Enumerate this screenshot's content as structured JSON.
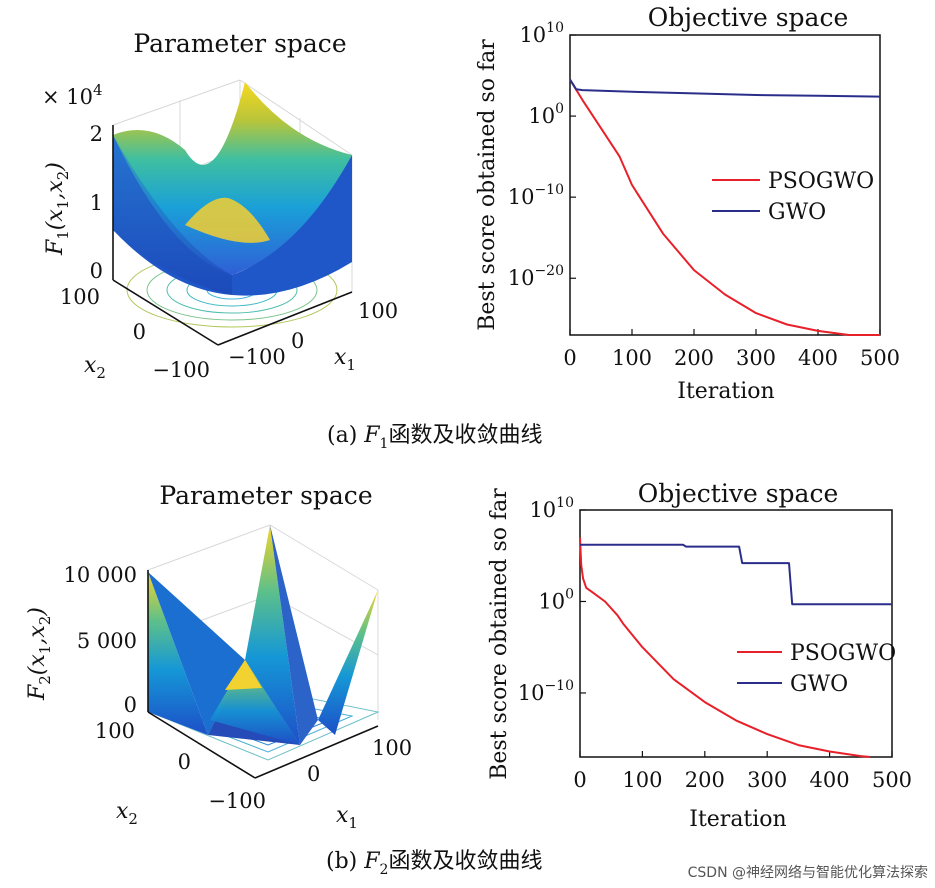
{
  "chart_data": [
    {
      "id": "f1-surface",
      "type": "surface3d",
      "title": "Parameter space",
      "function": "F1(x1,x2) = x1^2 + x2^2",
      "zlabel_func": "F",
      "zlabel_sub": "1",
      "zlabel_args": "(x",
      "zlabel_sub1": "1",
      "zlabel_comma": ",x",
      "zlabel_sub2": "2",
      "zlabel_close": ")",
      "zscale_label": "× 10",
      "zscale_exp": "4",
      "zticks": [
        "2",
        "1",
        "0"
      ],
      "x1label": "x",
      "x1label_sub": "1",
      "x2label": "x",
      "x2label_sub": "2",
      "x1ticks": [
        "−100",
        "0",
        "100"
      ],
      "x2ticks": [
        "100",
        "0",
        "−100"
      ],
      "zlim": [
        0,
        20000
      ],
      "xlim": [
        -100,
        100
      ]
    },
    {
      "id": "f1-convergence",
      "type": "line",
      "title": "Objective space",
      "xlabel": "Iteration",
      "ylabel": "Best score obtained so far",
      "yscale": "log",
      "xlim": [
        0,
        500
      ],
      "ylim_exp": [
        -27,
        10
      ],
      "xticks": [
        "0",
        "100",
        "200",
        "300",
        "400",
        "500"
      ],
      "yticks": [
        {
          "base": "10",
          "exp": "10",
          "v": 10
        },
        {
          "base": "10",
          "exp": "0",
          "v": 0
        },
        {
          "base": "10",
          "exp": "−10",
          "v": -10
        },
        {
          "base": "10",
          "exp": "−20",
          "v": -20
        }
      ],
      "series": [
        {
          "name": "PSOGWO",
          "color": "#e8202a",
          "x": [
            0,
            20,
            50,
            80,
            100,
            150,
            200,
            250,
            300,
            350,
            400,
            450,
            480,
            500
          ],
          "log10_y": [
            4.5,
            2,
            -1.5,
            -5,
            -8.5,
            -14.5,
            -19,
            -22,
            -24.3,
            -25.7,
            -26.5,
            -27,
            -27,
            -27
          ]
        },
        {
          "name": "GWO",
          "color": "#2a2e8a",
          "x": [
            0,
            10,
            20,
            100,
            200,
            300,
            400,
            500
          ],
          "log10_y": [
            4.5,
            3.3,
            3.2,
            3.0,
            2.8,
            2.6,
            2.5,
            2.4
          ]
        }
      ],
      "legend": "right-middle"
    },
    {
      "id": "f2-surface",
      "type": "surface3d",
      "title": "Parameter space",
      "function": "F2 pyramid surface",
      "zlabel_func": "F",
      "zlabel_sub": "2",
      "zlabel_args": "(x",
      "zlabel_sub1": "1",
      "zlabel_comma": ",x",
      "zlabel_sub2": "2",
      "zlabel_close": ")",
      "zticks": [
        "10 000",
        "5 000",
        "0"
      ],
      "x1label": "x",
      "x1label_sub": "1",
      "x2label": "x",
      "x2label_sub": "2",
      "x1ticks": [
        "−100",
        "0",
        "100"
      ],
      "x2ticks": [
        "100",
        "0",
        "−100"
      ],
      "zlim": [
        0,
        10000
      ],
      "xlim": [
        -100,
        100
      ]
    },
    {
      "id": "f2-convergence",
      "type": "line",
      "title": "Objective space",
      "xlabel": "Iteration",
      "ylabel": "Best score obtained so far",
      "yscale": "log",
      "xlim": [
        0,
        500
      ],
      "ylim_exp": [
        -17,
        10
      ],
      "xticks": [
        "0",
        "100",
        "200",
        "300",
        "400",
        "500"
      ],
      "yticks": [
        {
          "base": "10",
          "exp": "10",
          "v": 10
        },
        {
          "base": "10",
          "exp": "0",
          "v": 0
        },
        {
          "base": "10",
          "exp": "−10",
          "v": -10
        }
      ],
      "series": [
        {
          "name": "PSOGWO",
          "color": "#e8202a",
          "x": [
            0,
            2,
            5,
            10,
            20,
            40,
            60,
            70,
            100,
            150,
            200,
            250,
            300,
            350,
            400,
            450,
            465
          ],
          "log10_y": [
            7,
            4,
            2.5,
            1.5,
            1,
            0,
            -1.5,
            -2.5,
            -5,
            -8.5,
            -11,
            -13,
            -14.5,
            -15.7,
            -16.4,
            -16.9,
            -17
          ]
        },
        {
          "name": "GWO",
          "color": "#2a2e8a",
          "x": [
            0,
            5,
            165,
            170,
            255,
            260,
            335,
            340,
            500
          ],
          "log10_y": [
            6.2,
            6.2,
            6.2,
            6.0,
            6.0,
            4.2,
            4.2,
            -0.3,
            -0.3
          ]
        }
      ],
      "legend": "right-middle"
    }
  ],
  "captions": {
    "a_prefix": "(a) ",
    "a_func": "F",
    "a_sub": "1",
    "a_text": "函数及收敛曲线",
    "b_prefix": "(b) ",
    "b_func": "F",
    "b_sub": "2",
    "b_text": "函数及收敛曲线"
  },
  "watermark": "CSDN @神经网络与智能优化算法探索"
}
